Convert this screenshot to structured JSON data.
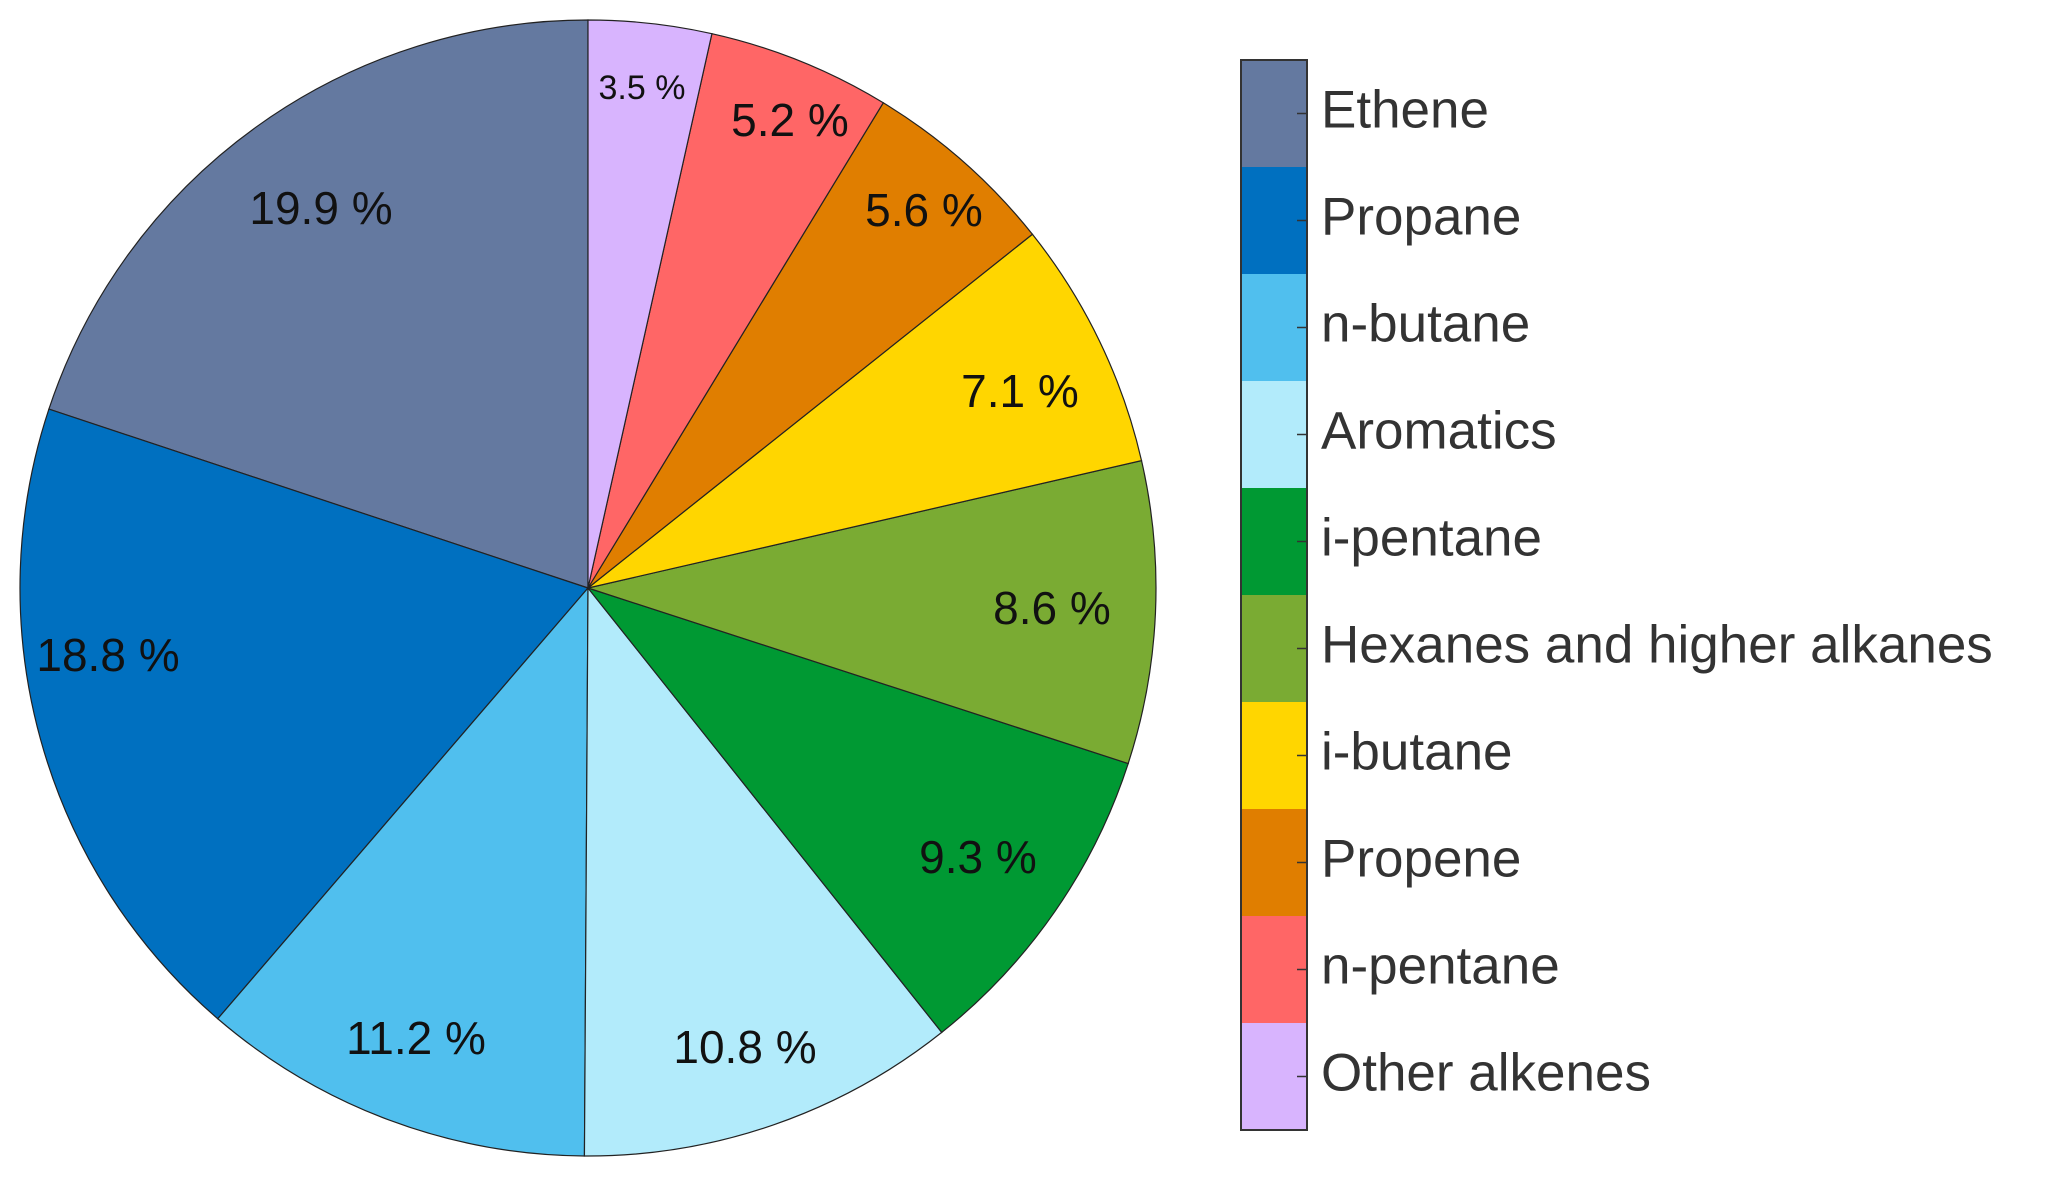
{
  "chart_data": {
    "type": "pie",
    "start_angle_deg": 0,
    "direction": "counterclockwise",
    "legend_placement": "right",
    "slices": [
      {
        "name": "Ethene",
        "value": 19.9,
        "label": "19.9 %",
        "color": "#6479a0"
      },
      {
        "name": "Propane",
        "value": 18.8,
        "label": "18.8 %",
        "color": "#0070c0"
      },
      {
        "name": "n-butane",
        "value": 11.2,
        "label": "11.2 %",
        "color": "#50bfee"
      },
      {
        "name": "Aromatics",
        "value": 10.8,
        "label": "10.8 %",
        "color": "#b2ebfb"
      },
      {
        "name": "i-pentane",
        "value": 9.3,
        "label": "9.3 %",
        "color": "#009933"
      },
      {
        "name": "Hexanes and higher alkanes",
        "value": 8.6,
        "label": "8.6 %",
        "color": "#7aab33"
      },
      {
        "name": "i-butane",
        "value": 7.1,
        "label": "7.1 %",
        "color": "#ffd600"
      },
      {
        "name": "Propene",
        "value": 5.6,
        "label": "5.6 %",
        "color": "#e07e00"
      },
      {
        "name": "n-pentane",
        "value": 5.2,
        "label": "5.2 %",
        "color": "#ff6666"
      },
      {
        "name": "Other alkenes",
        "value": 3.5,
        "label": "3.5 %",
        "color": "#d8b4fe"
      }
    ]
  }
}
